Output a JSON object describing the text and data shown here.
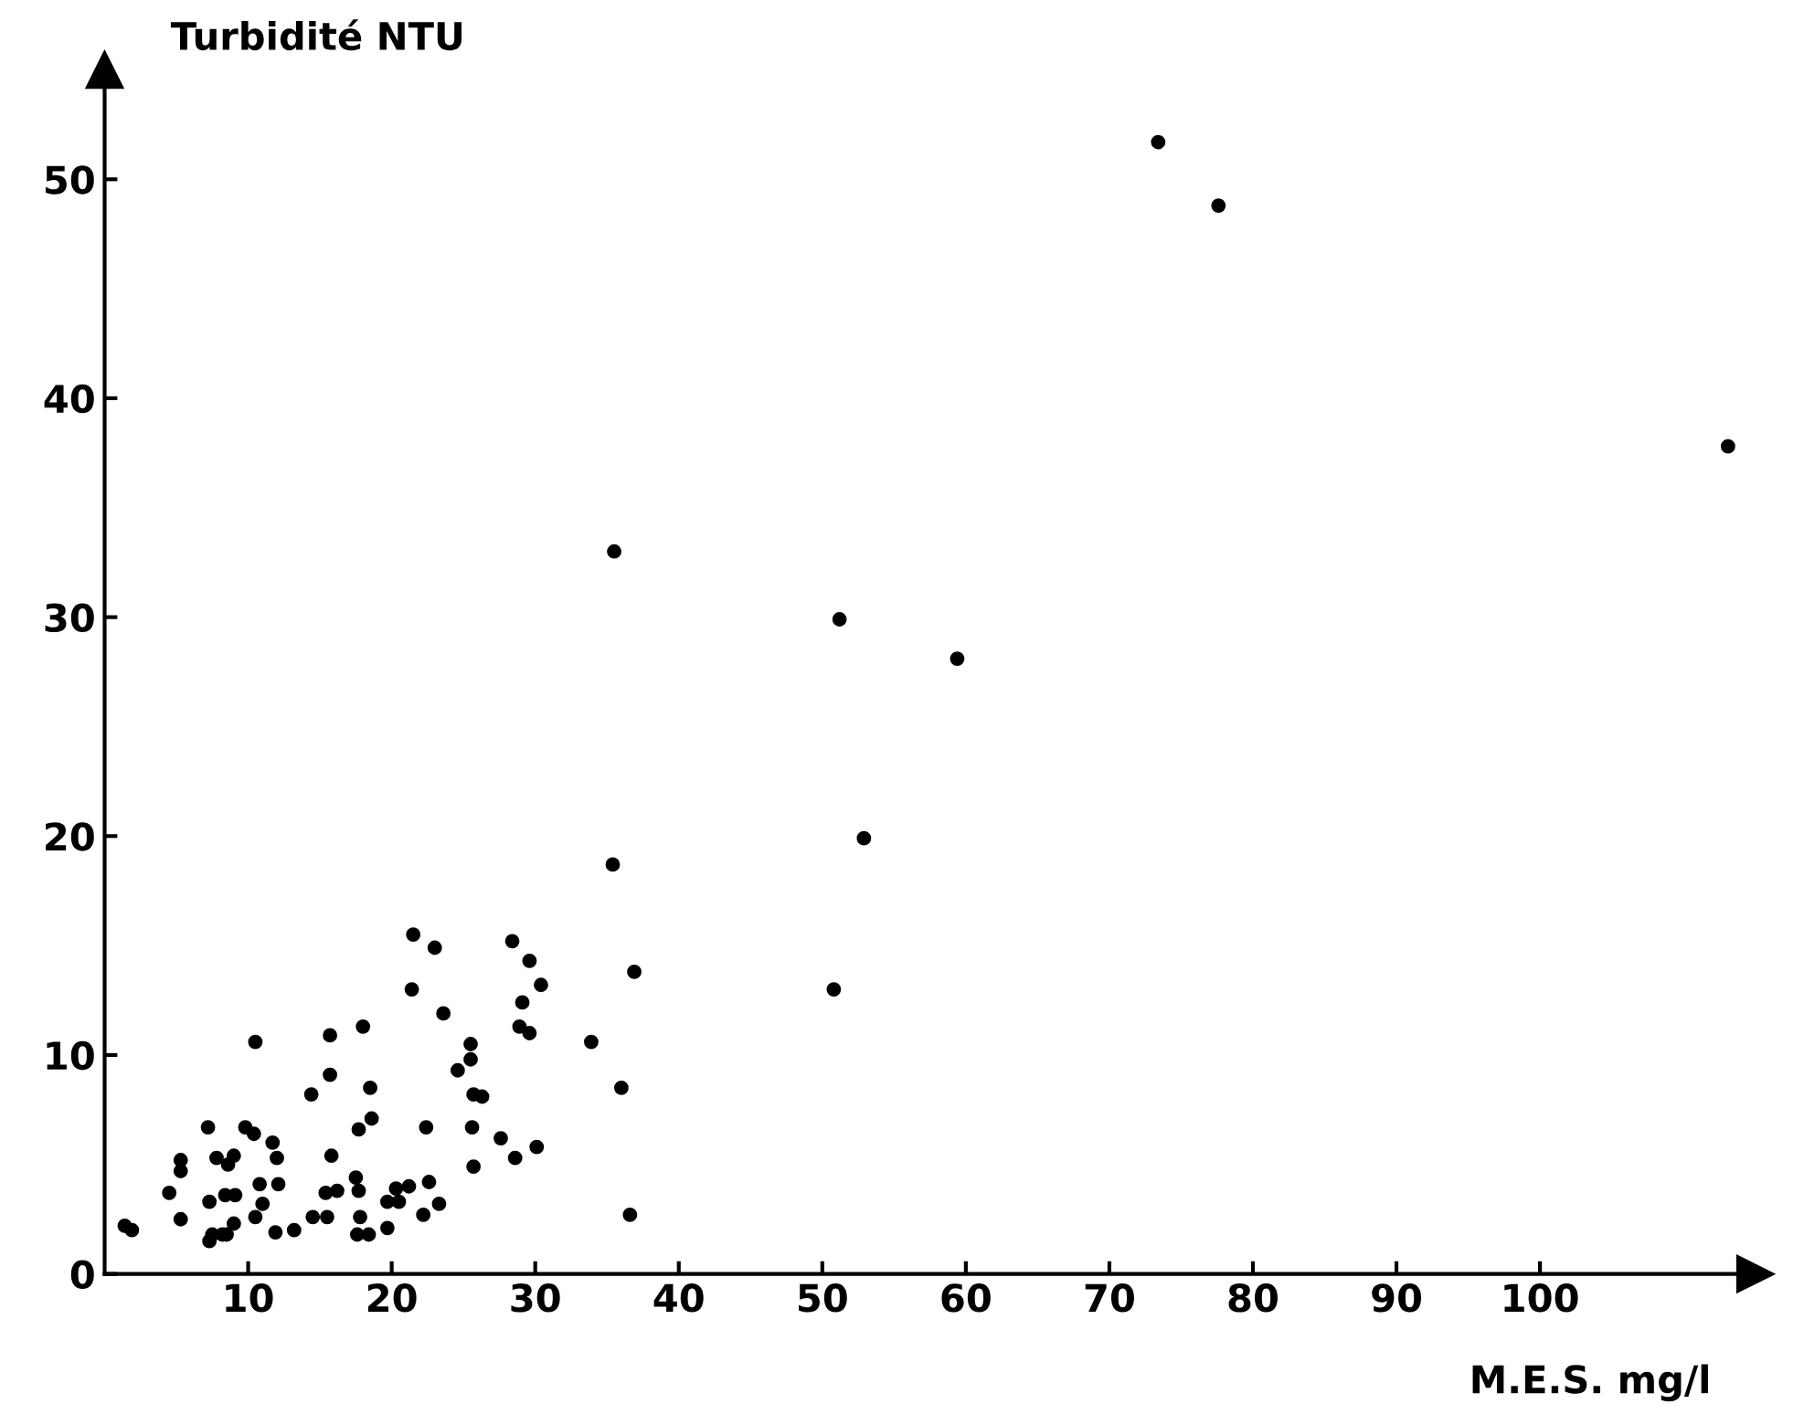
{
  "chart_data": {
    "type": "scatter",
    "xlabel": "M.E.S. mg/l",
    "ylabel": "Turbidité NTU",
    "xlim": [
      0,
      115
    ],
    "ylim": [
      0,
      55
    ],
    "xticks": [
      10,
      20,
      30,
      40,
      50,
      60,
      70,
      80,
      90,
      100
    ],
    "yticks": [
      0,
      10,
      20,
      30,
      40,
      50
    ],
    "grid": false,
    "marker": "circle",
    "series": [
      {
        "color": "#000000",
        "x": [
          73.4,
          77.6,
          113.1,
          51.2,
          59.4,
          52.9,
          50.8,
          35.5,
          35.4,
          36.9,
          33.9,
          36.0,
          21.5,
          23.0,
          21.4,
          23.6,
          28.4,
          29.6,
          30.4,
          29.1,
          28.9,
          29.6,
          25.5,
          25.5,
          24.6,
          25.7,
          26.3,
          25.6,
          22.4,
          27.6,
          30.1,
          28.6,
          25.7,
          18.0,
          15.7,
          15.7,
          14.4,
          18.5,
          18.6,
          17.7,
          15.8,
          10.5,
          7.2,
          9.8,
          10.4,
          11.7,
          12.0,
          7.8,
          9.0,
          8.6,
          5.3,
          4.5,
          5.3,
          5.3,
          7.3,
          8.4,
          9.1,
          10.8,
          12.1,
          11.0,
          10.5,
          9.0,
          7.3,
          7.5,
          8.2,
          8.5,
          1.4,
          1.9,
          11.9,
          13.2,
          14.5,
          15.5,
          15.4,
          16.2,
          17.5,
          17.7,
          17.8,
          17.6,
          18.4,
          20.3,
          21.2,
          22.6,
          19.7,
          20.5,
          23.3,
          22.2,
          19.7,
          36.6
        ],
        "values": [
          51.7,
          48.8,
          37.8,
          29.9,
          28.1,
          19.9,
          13.0,
          33.0,
          18.7,
          13.8,
          10.6,
          8.5,
          15.5,
          14.9,
          13.0,
          11.9,
          15.2,
          14.3,
          13.2,
          12.4,
          11.3,
          11.0,
          10.5,
          9.8,
          9.3,
          8.2,
          8.1,
          6.7,
          6.7,
          6.2,
          5.8,
          5.3,
          4.9,
          11.3,
          10.9,
          9.1,
          8.2,
          8.5,
          7.1,
          6.6,
          5.4,
          10.6,
          6.7,
          6.7,
          6.4,
          6.0,
          5.3,
          5.3,
          5.4,
          5.0,
          5.2,
          3.7,
          2.5,
          4.7,
          3.3,
          3.6,
          3.6,
          4.1,
          4.1,
          3.2,
          2.6,
          2.3,
          1.5,
          1.8,
          1.8,
          1.8,
          2.2,
          2.0,
          1.9,
          2.0,
          2.6,
          2.6,
          3.7,
          3.8,
          4.4,
          3.8,
          2.6,
          1.8,
          1.8,
          3.9,
          4.0,
          4.2,
          3.3,
          3.3,
          3.2,
          2.7,
          2.1,
          2.7
        ]
      }
    ]
  }
}
